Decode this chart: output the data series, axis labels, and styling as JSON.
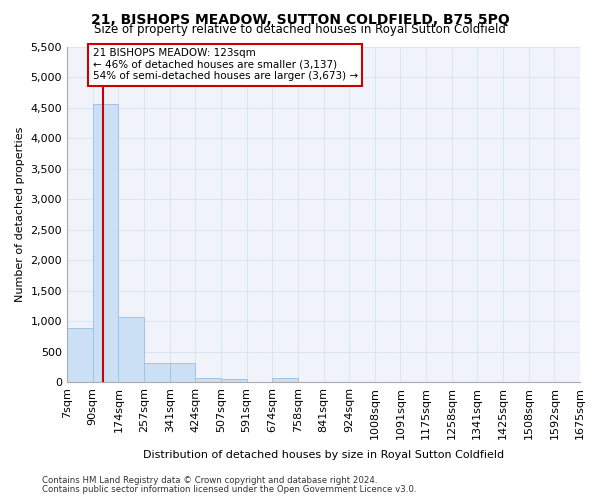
{
  "title": "21, BISHOPS MEADOW, SUTTON COLDFIELD, B75 5PQ",
  "subtitle": "Size of property relative to detached houses in Royal Sutton Coldfield",
  "xlabel": "Distribution of detached houses by size in Royal Sutton Coldfield",
  "ylabel": "Number of detached properties",
  "footnote1": "Contains HM Land Registry data © Crown copyright and database right 2024.",
  "footnote2": "Contains public sector information licensed under the Open Government Licence v3.0.",
  "property_size": 123,
  "property_label": "21 BISHOPS MEADOW: 123sqm",
  "pct_smaller": 46,
  "n_smaller": 3137,
  "pct_larger": 54,
  "n_larger": 3673,
  "bar_color": "#cce0f5",
  "bar_edgecolor": "#a0c4e8",
  "redline_color": "#cc0000",
  "annotation_box_edgecolor": "#cc0000",
  "grid_color": "#dce6f0",
  "background_color": "#f0f4fa",
  "bin_edges": [
    7,
    90,
    174,
    257,
    341,
    424,
    507,
    591,
    674,
    758,
    841,
    924,
    1008,
    1091,
    1175,
    1258,
    1341,
    1425,
    1508,
    1592,
    1675
  ],
  "bin_labels": [
    "7sqm",
    "90sqm",
    "174sqm",
    "257sqm",
    "341sqm",
    "424sqm",
    "507sqm",
    "591sqm",
    "674sqm",
    "758sqm",
    "841sqm",
    "924sqm",
    "1008sqm",
    "1091sqm",
    "1175sqm",
    "1258sqm",
    "1341sqm",
    "1425sqm",
    "1508sqm",
    "1592sqm",
    "1675sqm"
  ],
  "bar_heights": [
    880,
    4560,
    1060,
    310,
    310,
    70,
    55,
    0,
    70,
    0,
    0,
    0,
    0,
    0,
    0,
    0,
    0,
    0,
    0,
    0
  ],
  "ylim": [
    0,
    5500
  ],
  "yticks": [
    0,
    500,
    1000,
    1500,
    2000,
    2500,
    3000,
    3500,
    4000,
    4500,
    5000,
    5500
  ]
}
